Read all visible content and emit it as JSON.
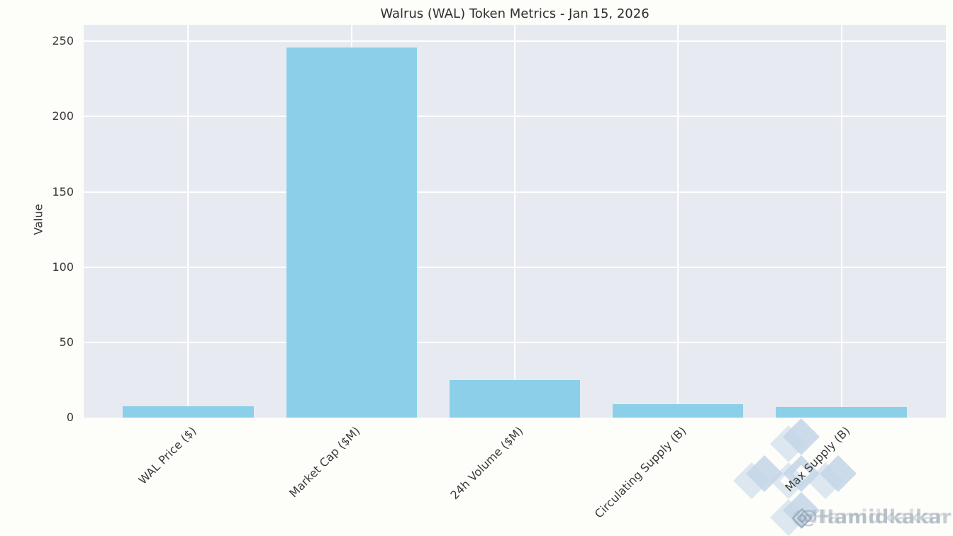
{
  "chart_data": {
    "type": "bar",
    "title": "Walrus (WAL) Token Metrics - Jan 15, 2026",
    "categories": [
      "WAL Price ($)",
      "Market Cap ($M)",
      "24h Volume ($M)",
      "Circulating Supply (B)",
      "Max Supply (B)"
    ],
    "values": [
      7.5,
      246,
      25,
      8.8,
      7
    ],
    "xlabel": "",
    "ylabel": "Value",
    "ylim": [
      0,
      261
    ],
    "yticks": [
      0,
      50,
      100,
      150,
      200,
      250
    ],
    "grid": true,
    "legend": "none",
    "bar_color": "#8bd0e8",
    "plot_bg": "#e8eaf1",
    "figure_bg": "#fdfdfa",
    "grid_color": "#ffffff",
    "text_color": "#3a3a3a"
  },
  "watermark": {
    "handle": "@Hamidkakar",
    "logo_icon": "binance-logo",
    "logo_color": "#c3d5e6"
  }
}
